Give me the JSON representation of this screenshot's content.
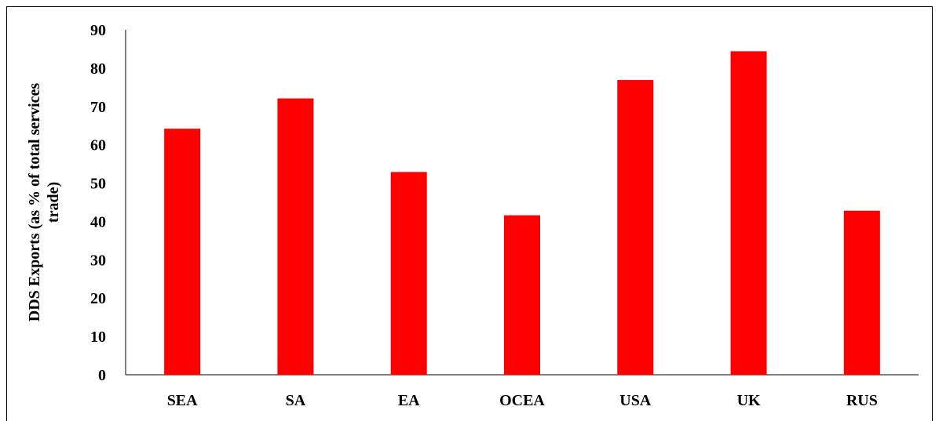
{
  "chart_data": {
    "type": "bar",
    "title": "",
    "xlabel": "",
    "ylabel_lines": [
      "DDS Exports (as % of total services",
      "trade)"
    ],
    "categories": [
      "SEA",
      "SA",
      "EA",
      "OCEA",
      "USA",
      "UK",
      "RUS"
    ],
    "values": [
      64.2,
      72.1,
      52.9,
      41.6,
      76.9,
      84.4,
      42.8
    ],
    "ylim": [
      0,
      90
    ],
    "yticks": [
      "0",
      "10",
      "20",
      "30",
      "40",
      "50",
      "60",
      "70",
      "80",
      "90"
    ],
    "grid": false,
    "legend": "none",
    "bar_color": "#ff0000"
  }
}
